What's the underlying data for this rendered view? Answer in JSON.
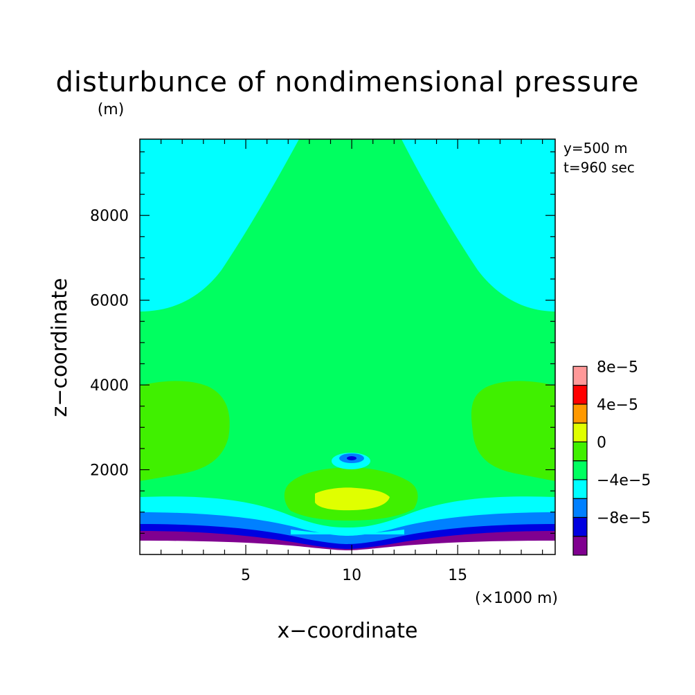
{
  "chart_data": {
    "type": "heatmap",
    "title": "disturbunce of nondimensional pressure",
    "subtitle": "(m)",
    "xlabel": "x−coordinate",
    "ylabel": "z−coordinate",
    "x_unit": "(×1000 m)",
    "xlim": [
      0,
      19.6
    ],
    "ylim": [
      0,
      9800
    ],
    "xticks": [
      5,
      10,
      15
    ],
    "yticks": [
      2000,
      4000,
      6000,
      8000
    ],
    "xtick_labels": [
      "5",
      "10",
      "15"
    ],
    "ytick_labels": [
      "2000",
      "4000",
      "6000",
      "8000"
    ],
    "annotations": [
      "y=500 m",
      "t=960 sec"
    ],
    "colorbar": {
      "levels": [
        -0.00012,
        -0.0001,
        -8e-05,
        -6e-05,
        -4e-05,
        -2e-05,
        0,
        2e-05,
        4e-05,
        6e-05,
        8e-05,
        0.0001
      ],
      "colors": [
        "#800090",
        "#0000e0",
        "#0080ff",
        "#00ffff",
        "#00ff60",
        "#40f000",
        "#e0ff00",
        "#ff9900",
        "#ff0000",
        "#ff9999"
      ],
      "tick_values": [
        -8e-05,
        -4e-05,
        0,
        4e-05,
        8e-05
      ],
      "tick_labels": [
        "−8e−5",
        "−4e−5",
        "0",
        "4e−5",
        "8e−5"
      ]
    },
    "regions": [
      {
        "value_range": [
          -2e-05,
          0
        ],
        "color": "#00ff60",
        "description": "background field"
      },
      {
        "value_range": [
          -4e-05,
          -2e-05
        ],
        "color": "#00ffff",
        "location": "upper corners above z≈6000 and low-level band near z≈1200"
      },
      {
        "value_range": [
          0,
          2e-05
        ],
        "color": "#40f000",
        "location": "side lobes at z≈2000–4000 and dome near x≈10"
      },
      {
        "value_range": [
          2e-05,
          4e-05
        ],
        "color": "#e0ff00",
        "location": "core near x≈10, z≈1400"
      },
      {
        "value_range": [
          -0.00012,
          -6e-05
        ],
        "color": "#0000e0",
        "location": "bottom layers below z≈1000"
      }
    ]
  }
}
